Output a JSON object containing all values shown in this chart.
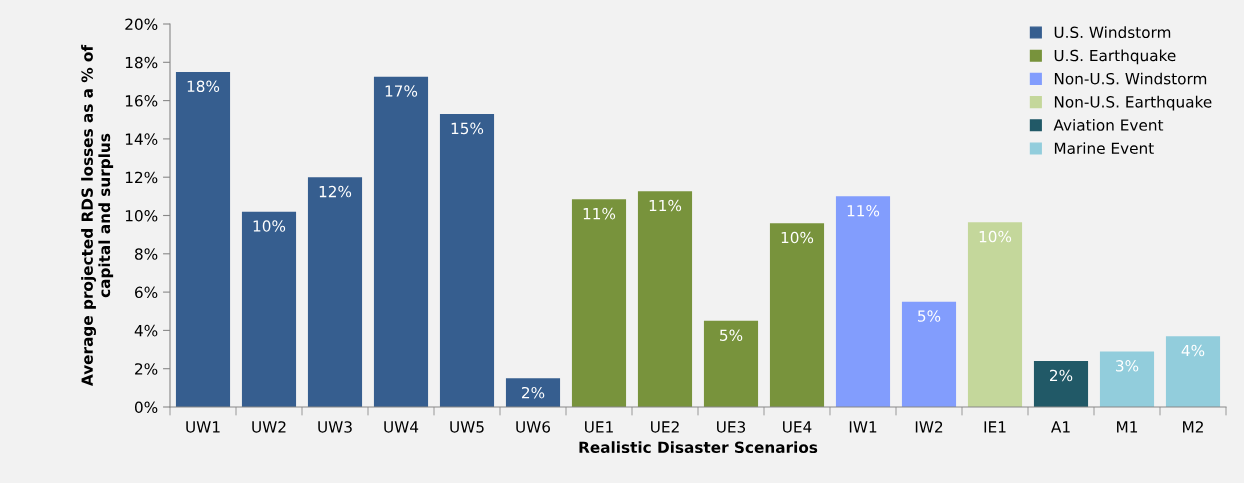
{
  "chart_data": {
    "type": "bar",
    "xlabel": "Realistic Disaster Scenarios",
    "ylabel": "Average projected RDS losses as a % of\ncapital and surplus",
    "categories": [
      "UW1",
      "UW2",
      "UW3",
      "UW4",
      "UW5",
      "UW6",
      "UE1",
      "UE2",
      "UE3",
      "UE4",
      "IW1",
      "IW2",
      "IE1",
      "A1",
      "M1",
      "M2"
    ],
    "series": [
      {
        "name": "U.S. Windstorm",
        "color": "#365e8f",
        "values": [
          17.5,
          10.2,
          12.0,
          17.25,
          15.3,
          1.5,
          null,
          null,
          null,
          null,
          null,
          null,
          null,
          null,
          null,
          null
        ],
        "value_labels": [
          "18%",
          "10%",
          "12%",
          "17%",
          "15%",
          "2%",
          null,
          null,
          null,
          null,
          null,
          null,
          null,
          null,
          null,
          null
        ]
      },
      {
        "name": "U.S. Earthquake",
        "color": "#78933c",
        "values": [
          null,
          null,
          null,
          null,
          null,
          null,
          10.85,
          11.27,
          4.5,
          9.6,
          null,
          null,
          null,
          null,
          null,
          null
        ],
        "value_labels": [
          null,
          null,
          null,
          null,
          null,
          null,
          "11%",
          "11%",
          "5%",
          "10%",
          null,
          null,
          null,
          null,
          null,
          null
        ]
      },
      {
        "name": "Non-U.S. Windstorm",
        "color": "#829dfd",
        "values": [
          null,
          null,
          null,
          null,
          null,
          null,
          null,
          null,
          null,
          null,
          11.0,
          5.5,
          null,
          null,
          null,
          null
        ],
        "value_labels": [
          null,
          null,
          null,
          null,
          null,
          null,
          null,
          null,
          null,
          null,
          "11%",
          "5%",
          null,
          null,
          null,
          null
        ]
      },
      {
        "name": "Non-U.S. Earthquake",
        "color": "#c4d79b",
        "values": [
          null,
          null,
          null,
          null,
          null,
          null,
          null,
          null,
          null,
          null,
          null,
          null,
          9.65,
          null,
          null,
          null
        ],
        "value_labels": [
          null,
          null,
          null,
          null,
          null,
          null,
          null,
          null,
          null,
          null,
          null,
          null,
          "10%",
          null,
          null,
          null
        ]
      },
      {
        "name": "Aviation Event",
        "color": "#215967",
        "values": [
          null,
          null,
          null,
          null,
          null,
          null,
          null,
          null,
          null,
          null,
          null,
          null,
          null,
          2.4,
          null,
          null
        ],
        "value_labels": [
          null,
          null,
          null,
          null,
          null,
          null,
          null,
          null,
          null,
          null,
          null,
          null,
          null,
          "2%",
          null,
          null
        ]
      },
      {
        "name": "Marine Event",
        "color": "#92cddc",
        "values": [
          null,
          null,
          null,
          null,
          null,
          null,
          null,
          null,
          null,
          null,
          null,
          null,
          null,
          null,
          2.9,
          3.7
        ],
        "value_labels": [
          null,
          null,
          null,
          null,
          null,
          null,
          null,
          null,
          null,
          null,
          null,
          null,
          null,
          null,
          "3%",
          "4%"
        ]
      }
    ],
    "ylim": [
      0,
      20
    ],
    "yticks": [
      {
        "value": 0,
        "label": "0%"
      },
      {
        "value": 2,
        "label": "2%"
      },
      {
        "value": 4,
        "label": "4%"
      },
      {
        "value": 6,
        "label": "6%"
      },
      {
        "value": 8,
        "label": "8%"
      },
      {
        "value": 10,
        "label": "10%"
      },
      {
        "value": 12,
        "label": "12%"
      },
      {
        "value": 14,
        "label": "14%"
      },
      {
        "value": 16,
        "label": "16%"
      },
      {
        "value": 18,
        "label": "18%"
      },
      {
        "value": 20,
        "label": "20%"
      }
    ],
    "grid": false,
    "legend": "top right"
  }
}
